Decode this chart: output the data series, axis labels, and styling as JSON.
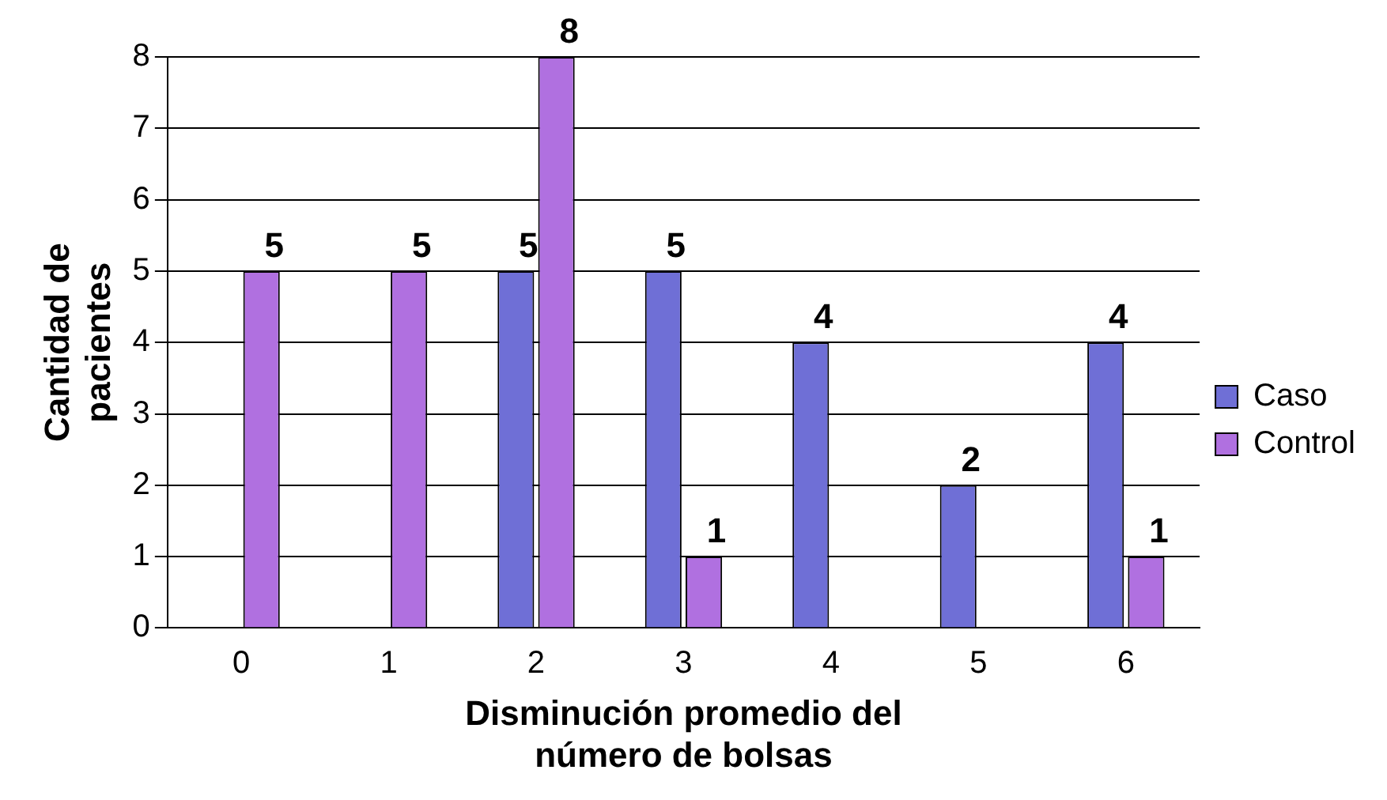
{
  "chart_data": {
    "type": "bar",
    "xlabel": "Disminución promedio del número de bolsas",
    "ylabel": "Cantidad de pacientes",
    "categories": [
      "0",
      "1",
      "2",
      "3",
      "4",
      "5",
      "6"
    ],
    "series": [
      {
        "name": "Caso",
        "color": "#6f6fd6",
        "values": [
          null,
          null,
          5,
          5,
          4,
          2,
          4
        ]
      },
      {
        "name": "Control",
        "color": "#b070e0",
        "values": [
          5,
          5,
          8,
          1,
          null,
          null,
          1
        ]
      }
    ],
    "ylim": [
      0,
      8
    ],
    "yticks": [
      0,
      1,
      2,
      3,
      4,
      5,
      6,
      7,
      8
    ],
    "grid": "y",
    "legend": "right",
    "data_labels": true
  }
}
